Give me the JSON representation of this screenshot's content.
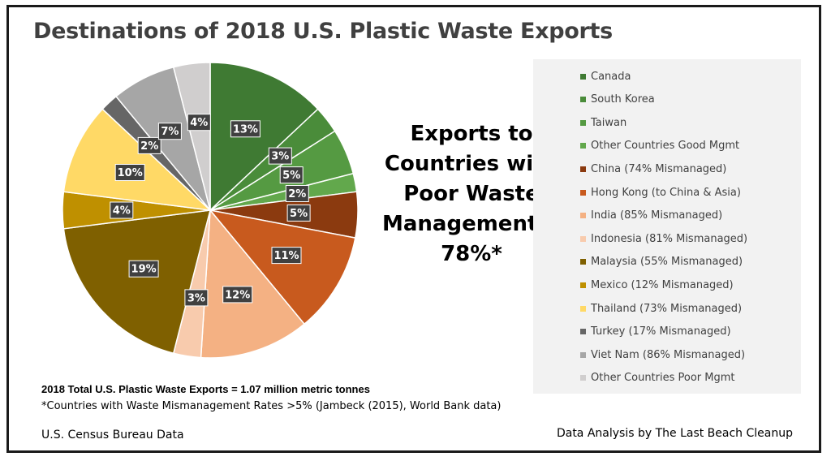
{
  "title": "Destinations of 2018 U.S. Plastic Waste Exports",
  "callout": {
    "lines": [
      "Exports to",
      "Countries with",
      "Poor Waste",
      "Management =",
      "78%*"
    ]
  },
  "notes": {
    "total": "2018 Total U.S. Plastic Waste Exports = 1.07 million metric tonnes",
    "footnote": "*Countries with Waste Mismanagement Rates >5% (Jambeck (2015), World Bank data)",
    "source": "U.S. Census Bureau Data",
    "credit": "Data Analysis by The Last Beach Cleanup"
  },
  "chart_data": {
    "type": "pie",
    "title": "Destinations of 2018 U.S. Plastic Waste Exports",
    "legend_position": "right",
    "slices": [
      {
        "name": "Canada",
        "value": 13,
        "label": "13%",
        "color": "#3f7a33"
      },
      {
        "name": "South Korea",
        "value": 3,
        "label": "3%",
        "color": "#4a8c3a"
      },
      {
        "name": "Taiwan",
        "value": 5,
        "label": "5%",
        "color": "#559a42"
      },
      {
        "name": "Other Countries Good Mgmt",
        "value": 2,
        "label": "2%",
        "color": "#62a84c"
      },
      {
        "name": "China (74% Mismanaged)",
        "value": 5,
        "label": "5%",
        "color": "#8b3a0f"
      },
      {
        "name": "Hong Kong (to China & Asia)",
        "value": 11,
        "label": "11%",
        "color": "#c85a1e"
      },
      {
        "name": "India (85% Mismanaged)",
        "value": 12,
        "label": "12%",
        "color": "#f4b183"
      },
      {
        "name": "Indonesia (81% Mismanaged)",
        "value": 3,
        "label": "3%",
        "color": "#f8cbad"
      },
      {
        "name": "Malaysia (55% Mismanaged)",
        "value": 19,
        "label": "19%",
        "color": "#7f6000"
      },
      {
        "name": "Mexico (12% Mismanaged)",
        "value": 4,
        "label": "4%",
        "color": "#bf9000"
      },
      {
        "name": "Thailand (73% Mismanaged)",
        "value": 10,
        "label": "10%",
        "color": "#ffd966"
      },
      {
        "name": "Turkey (17% Mismanaged)",
        "value": 2,
        "label": "2%",
        "color": "#666666"
      },
      {
        "name": "Viet Nam (86% Mismanaged)",
        "value": 7,
        "label": "7%",
        "color": "#a6a6a6"
      },
      {
        "name": "Other Countries Poor Mgmt",
        "value": 4,
        "label": "4%",
        "color": "#d0cece"
      }
    ]
  }
}
